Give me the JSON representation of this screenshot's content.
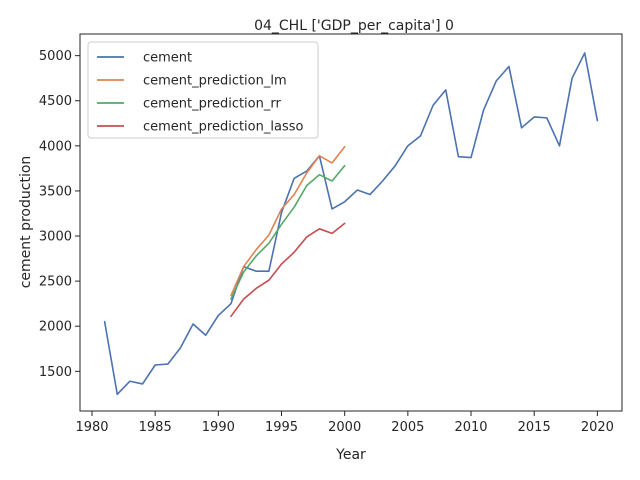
{
  "chart_data": {
    "type": "line",
    "title": "04_CHL ['GDP_per_capita'] 0",
    "xlabel": "Year",
    "ylabel": "cement production",
    "xlim": [
      1979.05,
      2021.95
    ],
    "ylim": [
      1060,
      5240
    ],
    "x_ticks": [
      1980,
      1985,
      1990,
      1995,
      2000,
      2005,
      2010,
      2015,
      2020
    ],
    "y_ticks": [
      1500,
      2000,
      2500,
      3000,
      3500,
      4000,
      4500,
      5000
    ],
    "grid": false,
    "legend_position": "top-left",
    "series": [
      {
        "name": "cement",
        "color": "#4c72b0",
        "x": [
          1981,
          1982,
          1983,
          1984,
          1985,
          1986,
          1987,
          1988,
          1989,
          1990,
          1991,
          1992,
          1993,
          1994,
          1995,
          1996,
          1997,
          1998,
          1999,
          2000,
          2001,
          2002,
          2003,
          2004,
          2005,
          2006,
          2007,
          2008,
          2009,
          2010,
          2011,
          2012,
          2013,
          2014,
          2015,
          2016,
          2017,
          2018,
          2019,
          2020
        ],
        "y": [
          2050,
          1245,
          1390,
          1360,
          1570,
          1580,
          1760,
          2025,
          1900,
          2120,
          2250,
          2660,
          2610,
          2610,
          3260,
          3640,
          3720,
          3890,
          3300,
          3380,
          3510,
          3460,
          3610,
          3780,
          4000,
          4110,
          4450,
          4620,
          3880,
          3870,
          4400,
          4720,
          4880,
          4200,
          4320,
          4310,
          4000,
          4750,
          5030,
          4280
        ]
      },
      {
        "name": "cement_prediction_lm",
        "color": "#dd8452",
        "x": [
          1991,
          1992,
          1993,
          1994,
          1995,
          1996,
          1997,
          1998,
          1999,
          2000
        ],
        "y": [
          2340,
          2660,
          2850,
          3010,
          3300,
          3460,
          3700,
          3890,
          3810,
          3990
        ]
      },
      {
        "name": "cement_prediction_rr",
        "color": "#55a868",
        "x": [
          1991,
          1992,
          1993,
          1994,
          1995,
          1996,
          1997,
          1998,
          1999,
          2000
        ],
        "y": [
          2300,
          2600,
          2780,
          2920,
          3130,
          3320,
          3560,
          3680,
          3610,
          3780
        ]
      },
      {
        "name": "cement_prediction_lasso",
        "color": "#c44e52",
        "x": [
          1991,
          1992,
          1993,
          1994,
          1995,
          1996,
          1997,
          1998,
          1999,
          2000
        ],
        "y": [
          2110,
          2300,
          2420,
          2510,
          2690,
          2820,
          2990,
          3080,
          3030,
          3140
        ]
      }
    ]
  }
}
